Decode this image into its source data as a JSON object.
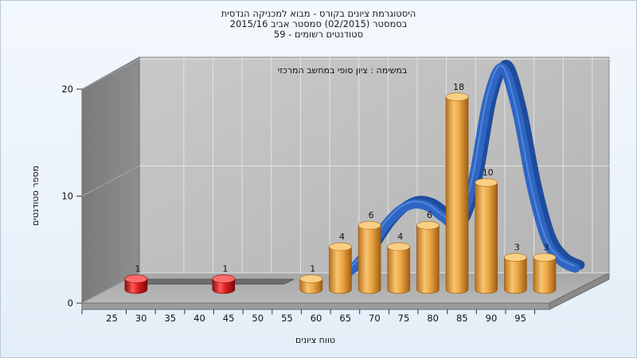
{
  "chart_data": {
    "type": "bar",
    "title_lines": [
      "היסטוגרמת ציונים בקורס - מבוא למכניקה הנדסית",
      "בסמסטר  (02/2015)  סמסטר אביב 2015/16",
      "סטודנטים רשומים - 59"
    ],
    "annotation": "במשימה : ציון סופי במחשב המרכזי",
    "xlabel": "טווח ציונים",
    "ylabel": "מספר סטודנטים",
    "x_ticks": [
      25,
      30,
      35,
      40,
      45,
      50,
      55,
      60,
      65,
      70,
      75,
      80,
      85,
      90,
      95
    ],
    "y_ticks": [
      0,
      10,
      20
    ],
    "ylim": [
      0,
      20
    ],
    "bars": [
      {
        "x": 25,
        "value": 1,
        "color": "#d81c1c"
      },
      {
        "x": 40,
        "value": 1,
        "color": "#d81c1c"
      },
      {
        "x": 55,
        "value": 1,
        "color": "#e8a33c"
      },
      {
        "x": 60,
        "value": 4,
        "color": "#e8a33c"
      },
      {
        "x": 65,
        "value": 6,
        "color": "#e8a33c"
      },
      {
        "x": 70,
        "value": 4,
        "color": "#e8a33c"
      },
      {
        "x": 75,
        "value": 6,
        "color": "#e8a33c"
      },
      {
        "x": 80,
        "value": 18,
        "color": "#e8a33c"
      },
      {
        "x": 85,
        "value": 10,
        "color": "#e8a33c"
      },
      {
        "x": 90,
        "value": 3,
        "color": "#e8a33c"
      },
      {
        "x": 95,
        "value": 3,
        "color": "#e8a33c"
      }
    ],
    "curve": {
      "x": [
        57.5,
        60,
        62.5,
        65,
        67.5,
        70,
        72.5,
        75,
        77.5,
        80,
        82.5,
        85,
        87.5,
        90,
        92.5,
        95,
        97.5
      ],
      "y": [
        0.5,
        1.6,
        3.3,
        5.3,
        6.7,
        7.3,
        7.0,
        6.0,
        5.4,
        9.5,
        17.0,
        20.0,
        16.0,
        9.0,
        4.0,
        2.0,
        1.3
      ],
      "color": "#2f66c4"
    },
    "low_band": {
      "from": 25,
      "to": 57.5,
      "color": "#6d6d6d"
    },
    "grid": true,
    "legend": "none"
  }
}
